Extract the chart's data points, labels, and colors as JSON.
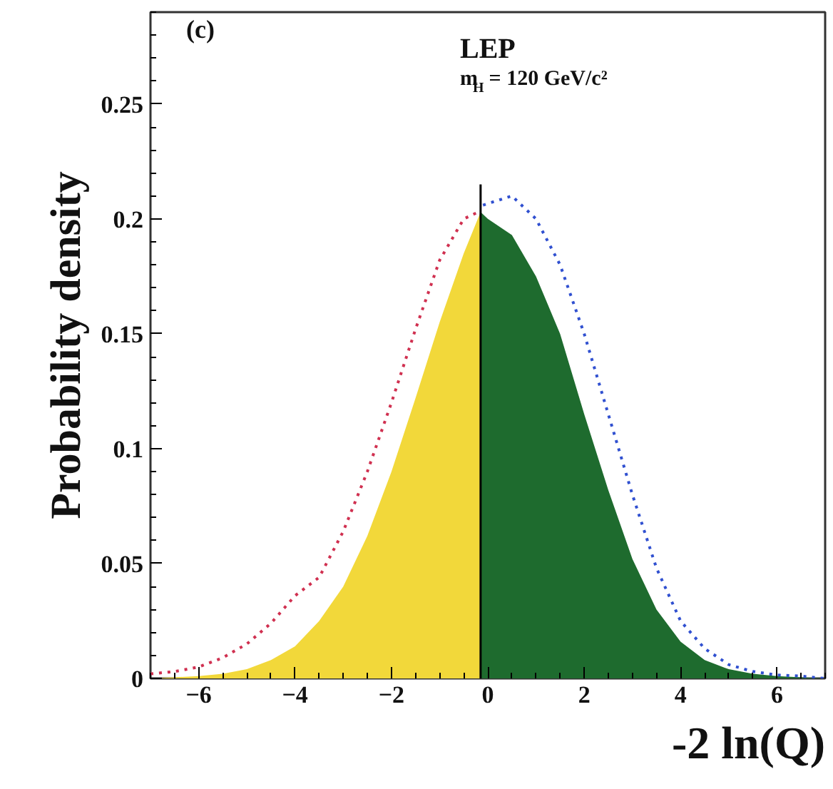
{
  "chart_data": {
    "type": "area",
    "xlabel": "-2 ln(Q)",
    "ylabel": "Probability density",
    "annotations": [
      "(c)",
      "LEP",
      "m$_{H}$ = 120 GeV/c²"
    ],
    "xlim": [
      -7,
      7
    ],
    "ylim": [
      0,
      0.29
    ],
    "xticks": [
      -6,
      -4,
      -2,
      0,
      2,
      4,
      6
    ],
    "yticks": [
      0,
      0.05,
      0.1,
      0.15,
      0.2,
      0.25
    ],
    "grid": false,
    "marker": "none",
    "series": [
      {
        "color": "#f2d83a",
        "x": [
          -7,
          -6.5,
          -6,
          -5.5,
          -5,
          -4.5,
          -4,
          -3.5,
          -3,
          -2.5,
          -2,
          -1.5,
          -1,
          -0.5,
          -0.15
        ],
        "values": [
          0,
          0.0005,
          0.001,
          0.002,
          0.004,
          0.008,
          0.014,
          0.025,
          0.04,
          0.062,
          0.09,
          0.122,
          0.155,
          0.185,
          0.203
        ]
      },
      {
        "color": "#1e6b2e",
        "x": [
          -0.15,
          0,
          0.5,
          1,
          1.5,
          2,
          2.5,
          3,
          3.5,
          4,
          4.5,
          5,
          5.5,
          6,
          6.5,
          7
        ],
        "values": [
          0.203,
          0.2,
          0.193,
          0.175,
          0.15,
          0.115,
          0.082,
          0.052,
          0.03,
          0.016,
          0.008,
          0.004,
          0.002,
          0.001,
          0.0005,
          0
        ]
      },
      {
        "type": "line",
        "color": "#d03050",
        "line_style": "dotted",
        "x": [
          -7,
          -6.5,
          -6,
          -5.5,
          -5,
          -4.5,
          -4,
          -3.5,
          -3,
          -2.5,
          -2,
          -1.5,
          -1,
          -0.5,
          -0.2
        ],
        "values": [
          0.002,
          0.003,
          0.005,
          0.009,
          0.015,
          0.024,
          0.036,
          0.044,
          0.064,
          0.09,
          0.12,
          0.152,
          0.182,
          0.2,
          0.203
        ]
      },
      {
        "type": "line",
        "color": "#3050d0",
        "line_style": "dotted",
        "x": [
          -0.1,
          0.5,
          1,
          1.5,
          2,
          2.5,
          3,
          3.5,
          4,
          4.5,
          5,
          5.5,
          6,
          6.5,
          7
        ],
        "values": [
          0.206,
          0.21,
          0.2,
          0.18,
          0.15,
          0.115,
          0.08,
          0.048,
          0.025,
          0.013,
          0.006,
          0.003,
          0.0015,
          0.001,
          0
        ]
      },
      {
        "type": "line",
        "color": "#000000",
        "line_style": "solid",
        "x": [
          -0.15,
          -0.15
        ],
        "values": [
          0,
          0.215
        ]
      }
    ]
  }
}
